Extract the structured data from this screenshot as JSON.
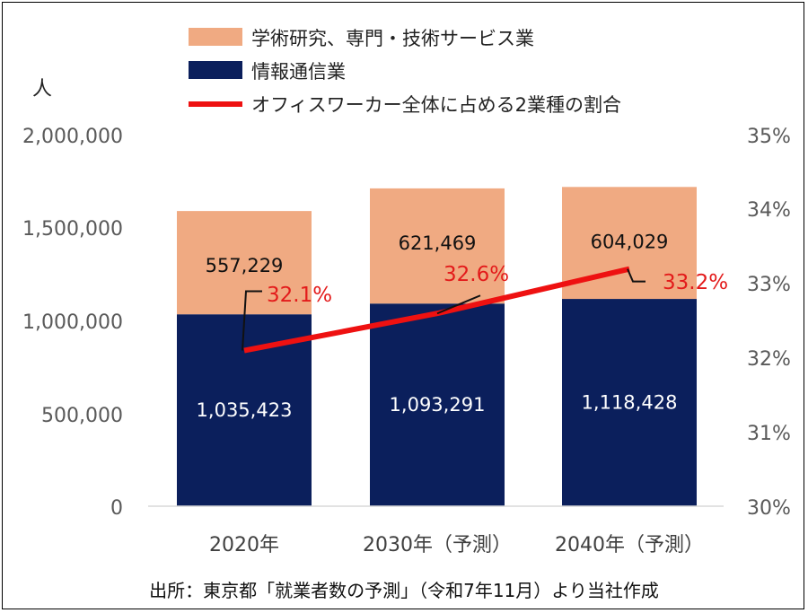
{
  "chart_data": {
    "type": "bar",
    "stacked": true,
    "categories": [
      "2020年",
      "2030年（予測）",
      "2040年（予測）"
    ],
    "series": [
      {
        "name": "情報通信業",
        "values": [
          1035423,
          1093291,
          1118428
        ],
        "labels": [
          "1,035,423",
          "1,093,291",
          "1,118,428"
        ],
        "color": "#0b1f5c"
      },
      {
        "name": "学術研究、専門・技術サービス業",
        "values": [
          557229,
          621469,
          604029
        ],
        "labels": [
          "557,229",
          "621,469",
          "604,029"
        ],
        "color": "#f0aa82"
      }
    ],
    "line_series": {
      "name": "オフィスワーカー全体に占める2業種の割合",
      "values": [
        32.1,
        32.6,
        33.2
      ],
      "labels": [
        "32.1%",
        "32.6%",
        "33.2%"
      ],
      "color": "#ee1111",
      "axis": "right"
    },
    "y_left": {
      "unit": "人",
      "range": [
        0,
        2000000
      ],
      "ticks": [
        "0",
        "500,000",
        "1,000,000",
        "1,500,000",
        "2,000,000"
      ]
    },
    "y_right": {
      "range": [
        30,
        35
      ],
      "ticks": [
        "30%",
        "31%",
        "32%",
        "33%",
        "34%",
        "35%"
      ]
    },
    "legend": [
      "学術研究、専門・技術サービス業",
      "情報通信業",
      "オフィスワーカー全体に占める2業種の割合"
    ],
    "source": "出所：東京都「就業者数の予測」（令和7年11月）より当社作成"
  }
}
